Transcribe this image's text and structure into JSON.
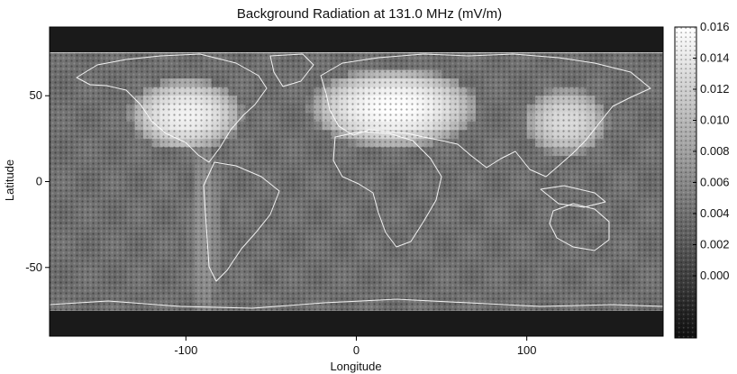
{
  "chart_data": {
    "type": "heatmap",
    "title": "Background Radiation at 131.0 MHz (mV/m)",
    "xlabel": "Longitude",
    "ylabel": "Latitude",
    "xlim": [
      -180,
      180
    ],
    "ylim": [
      -90,
      90
    ],
    "xticks": [
      -100,
      0,
      100
    ],
    "yticks": [
      50,
      0,
      -50
    ],
    "data_lat_range": [
      -75,
      75
    ],
    "grid": false,
    "colormap": "grayscale, dark = low, white = high",
    "colorbar": {
      "location": "right",
      "ticks": [
        0.016,
        0.014,
        0.012,
        0.01,
        0.008,
        0.006,
        0.004,
        0.002,
        0.0
      ],
      "tick_labels": [
        "0.016",
        "0.014",
        "0.012",
        "0.010",
        "0.008",
        "0.006",
        "0.004",
        "0.002",
        "0.000"
      ],
      "range": [
        -0.004,
        0.016
      ]
    },
    "background_value": 0.004,
    "hotspots": [
      {
        "region": "North America",
        "lon": [
          -127,
          -73
        ],
        "lat": [
          22,
          56
        ],
        "peak_value": 0.015
      },
      {
        "region": "Europe / Western Asia",
        "lon": [
          -18,
          62
        ],
        "lat": [
          24,
          62
        ],
        "peak_value": 0.016
      },
      {
        "region": "East Asia",
        "lon": [
          103,
          143
        ],
        "lat": [
          19,
          51
        ],
        "peak_value": 0.013
      },
      {
        "region": "Central American longitudes (band)",
        "lon": [
          -96,
          -82
        ],
        "lat": [
          -75,
          20
        ],
        "peak_value": 0.007
      }
    ],
    "map_overlay": "world coastlines (white)"
  }
}
